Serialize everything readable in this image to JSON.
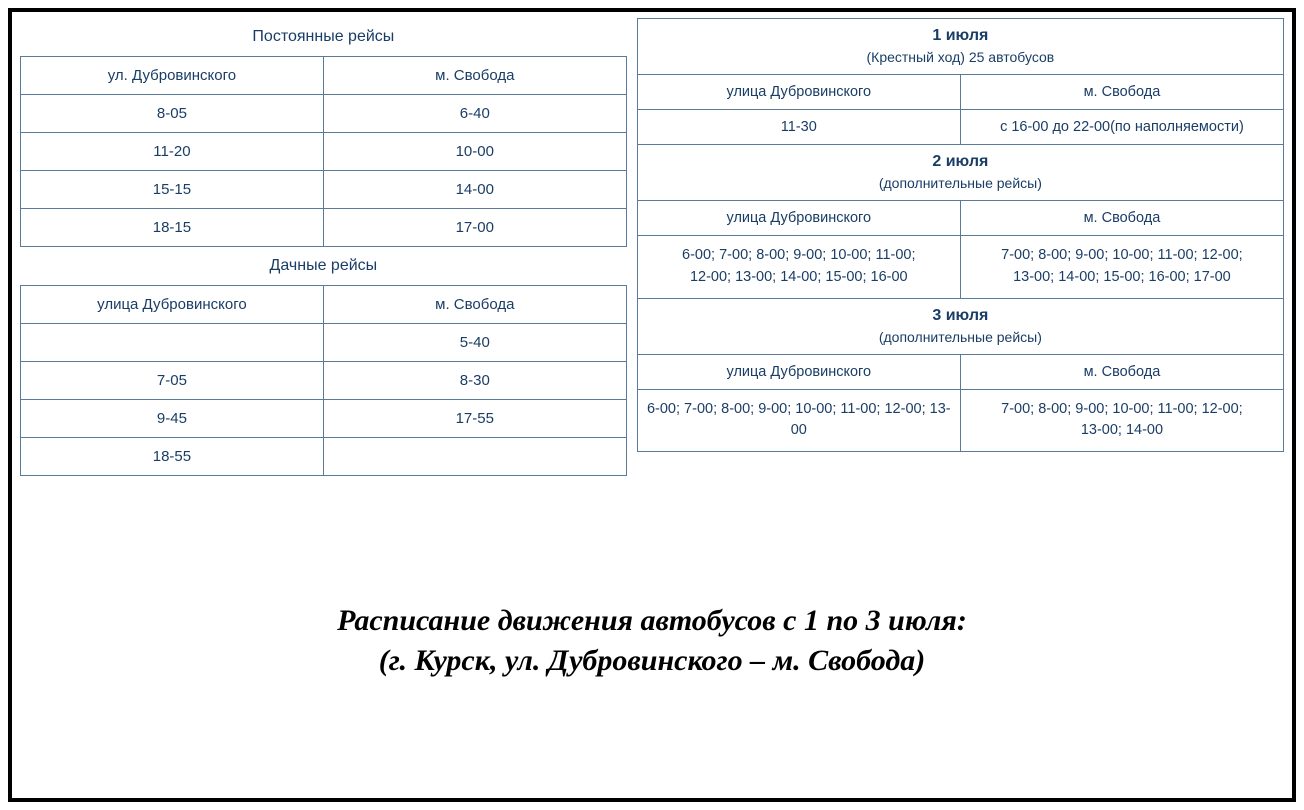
{
  "colors": {
    "text": "#1a3d66",
    "border": "#5a7a9a",
    "outer_border": "#000000",
    "background": "#ffffff"
  },
  "left": {
    "section1": {
      "title": "Постоянные рейсы",
      "col1": "ул. Дубровинского",
      "col2": "м. Свобода",
      "rows": [
        [
          "8-05",
          "6-40"
        ],
        [
          "11-20",
          "10-00"
        ],
        [
          "15-15",
          "14-00"
        ],
        [
          "18-15",
          "17-00"
        ]
      ]
    },
    "section2": {
      "title": "Дачные рейсы",
      "col1": "улица Дубровинского",
      "col2": "м. Свобода",
      "rows": [
        [
          "",
          "5-40"
        ],
        [
          "7-05",
          "8-30"
        ],
        [
          "9-45",
          "17-55"
        ],
        [
          "18-55",
          ""
        ]
      ]
    }
  },
  "right": {
    "day1": {
      "date": "1 июля",
      "sub": "(Крестный ход) 25 автобусов",
      "col1": "улица Дубровинского",
      "col2": "м. Свобода",
      "row": [
        "11-30",
        "с 16-00 до 22-00(по наполняемости)"
      ]
    },
    "day2": {
      "date": "2 июля",
      "sub": "(дополнительные рейсы)",
      "col1": "улица Дубровинского",
      "col2": "м. Свобода",
      "cell1_line1": "6-00; 7-00; 8-00; 9-00; 10-00; 11-00;",
      "cell1_line2": "12-00; 13-00; 14-00; 15-00; 16-00",
      "cell2_line1": "7-00; 8-00; 9-00; 10-00; 11-00; 12-00;",
      "cell2_line2": "13-00; 14-00; 15-00; 16-00; 17-00"
    },
    "day3": {
      "date": "3 июля",
      "sub": "(дополнительные рейсы)",
      "col1": "улица Дубровинского",
      "col2": "м. Свобода",
      "cell1_line1": "6-00; 7-00; 8-00; 9-00; 10-00; 11-00; 12-00; 13-00",
      "cell2_line1": "7-00; 8-00; 9-00; 10-00; 11-00; 12-00;",
      "cell2_line2": "13-00; 14-00"
    }
  },
  "footer": {
    "line1": "Расписание движения автобусов с 1 по 3 июля:",
    "line2": "(г. Курск, ул. Дубровинского –  м. Свобода)"
  }
}
